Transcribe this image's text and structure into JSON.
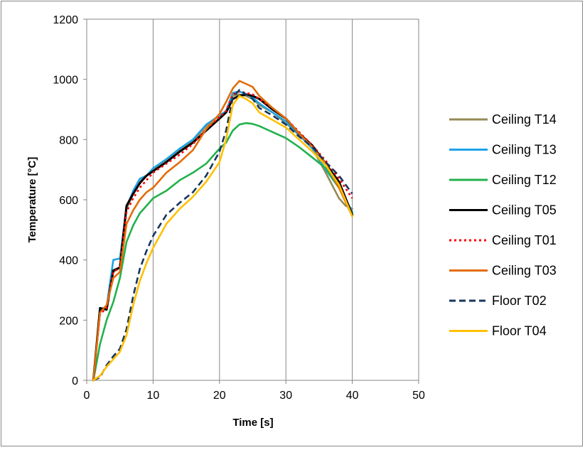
{
  "chart_data": {
    "type": "line",
    "title": "",
    "xlabel": "Time [s]",
    "ylabel": "Temperature [°C]",
    "xlim": [
      0,
      50
    ],
    "ylim": [
      0,
      1200
    ],
    "xticks": [
      "0",
      "10",
      "20",
      "30",
      "40",
      "50"
    ],
    "yticks": [
      "0",
      "200",
      "400",
      "600",
      "800",
      "1000",
      "1200"
    ],
    "grid": "vertical",
    "legend_position": "right",
    "series": [
      {
        "name": "Ceiling T14",
        "color": "#958a57",
        "dash": "solid",
        "points": [
          [
            1,
            0
          ],
          [
            2,
            235
          ],
          [
            3,
            240
          ],
          [
            4,
            360
          ],
          [
            5,
            375
          ],
          [
            6,
            570
          ],
          [
            7,
            620
          ],
          [
            8,
            660
          ],
          [
            9,
            680
          ],
          [
            10,
            700
          ],
          [
            12,
            730
          ],
          [
            14,
            765
          ],
          [
            16,
            795
          ],
          [
            18,
            845
          ],
          [
            20,
            880
          ],
          [
            21,
            890
          ],
          [
            22,
            945
          ],
          [
            23,
            950
          ],
          [
            24,
            945
          ],
          [
            25,
            935
          ],
          [
            26,
            915
          ],
          [
            28,
            890
          ],
          [
            30,
            855
          ],
          [
            32,
            815
          ],
          [
            34,
            770
          ],
          [
            36,
            690
          ],
          [
            38,
            605
          ],
          [
            39,
            580
          ],
          [
            40,
            570
          ]
        ]
      },
      {
        "name": "Ceiling T13",
        "color": "#1ea3e6",
        "dash": "solid",
        "points": [
          [
            1,
            0
          ],
          [
            2,
            235
          ],
          [
            3,
            245
          ],
          [
            4,
            400
          ],
          [
            5,
            405
          ],
          [
            6,
            575
          ],
          [
            7,
            630
          ],
          [
            8,
            670
          ],
          [
            9,
            680
          ],
          [
            10,
            705
          ],
          [
            12,
            735
          ],
          [
            14,
            770
          ],
          [
            16,
            800
          ],
          [
            18,
            850
          ],
          [
            20,
            880
          ],
          [
            21,
            895
          ],
          [
            22,
            955
          ],
          [
            23,
            960
          ],
          [
            24,
            950
          ],
          [
            25,
            940
          ],
          [
            26,
            920
          ],
          [
            28,
            890
          ],
          [
            30,
            860
          ],
          [
            32,
            815
          ],
          [
            34,
            770
          ],
          [
            36,
            700
          ],
          [
            38,
            640
          ],
          [
            40,
            560
          ]
        ]
      },
      {
        "name": "Ceiling T12",
        "color": "#22b14c",
        "dash": "solid",
        "points": [
          [
            1,
            0
          ],
          [
            2,
            120
          ],
          [
            3,
            200
          ],
          [
            4,
            260
          ],
          [
            5,
            340
          ],
          [
            6,
            460
          ],
          [
            7,
            515
          ],
          [
            8,
            555
          ],
          [
            9,
            580
          ],
          [
            10,
            605
          ],
          [
            12,
            630
          ],
          [
            14,
            665
          ],
          [
            16,
            690
          ],
          [
            18,
            720
          ],
          [
            20,
            770
          ],
          [
            21,
            790
          ],
          [
            22,
            830
          ],
          [
            23,
            850
          ],
          [
            24,
            855
          ],
          [
            25,
            852
          ],
          [
            26,
            845
          ],
          [
            28,
            825
          ],
          [
            30,
            805
          ],
          [
            32,
            775
          ],
          [
            34,
            740
          ],
          [
            36,
            705
          ],
          [
            38,
            640
          ],
          [
            40,
            555
          ]
        ]
      },
      {
        "name": "Ceiling T05",
        "color": "#000000",
        "dash": "solid",
        "points": [
          [
            1,
            0
          ],
          [
            2,
            240
          ],
          [
            3,
            235
          ],
          [
            4,
            365
          ],
          [
            5,
            375
          ],
          [
            6,
            580
          ],
          [
            7,
            620
          ],
          [
            8,
            655
          ],
          [
            9,
            680
          ],
          [
            10,
            695
          ],
          [
            12,
            725
          ],
          [
            14,
            760
          ],
          [
            16,
            790
          ],
          [
            18,
            830
          ],
          [
            20,
            870
          ],
          [
            21,
            890
          ],
          [
            22,
            935
          ],
          [
            23,
            945
          ],
          [
            24,
            950
          ],
          [
            25,
            945
          ],
          [
            26,
            935
          ],
          [
            28,
            900
          ],
          [
            30,
            870
          ],
          [
            32,
            820
          ],
          [
            34,
            780
          ],
          [
            36,
            720
          ],
          [
            38,
            660
          ],
          [
            40,
            550
          ]
        ]
      },
      {
        "name": "Ceiling T01",
        "color": "#ff0000",
        "dash": "3,4",
        "points": [
          [
            1,
            0
          ],
          [
            2,
            220
          ],
          [
            3,
            240
          ],
          [
            4,
            360
          ],
          [
            5,
            375
          ],
          [
            6,
            560
          ],
          [
            7,
            605
          ],
          [
            8,
            640
          ],
          [
            9,
            665
          ],
          [
            10,
            690
          ],
          [
            12,
            720
          ],
          [
            14,
            750
          ],
          [
            16,
            785
          ],
          [
            18,
            835
          ],
          [
            20,
            875
          ],
          [
            21,
            895
          ],
          [
            22,
            950
          ],
          [
            23,
            960
          ],
          [
            24,
            955
          ],
          [
            25,
            950
          ],
          [
            26,
            935
          ],
          [
            28,
            905
          ],
          [
            30,
            870
          ],
          [
            32,
            825
          ],
          [
            34,
            780
          ],
          [
            36,
            730
          ],
          [
            38,
            670
          ],
          [
            40,
            605
          ]
        ]
      },
      {
        "name": "Ceiling T03",
        "color": "#e36c09",
        "dash": "solid",
        "points": [
          [
            1,
            0
          ],
          [
            2,
            225
          ],
          [
            3,
            250
          ],
          [
            4,
            340
          ],
          [
            5,
            360
          ],
          [
            6,
            520
          ],
          [
            7,
            565
          ],
          [
            8,
            600
          ],
          [
            9,
            625
          ],
          [
            10,
            640
          ],
          [
            12,
            690
          ],
          [
            14,
            725
          ],
          [
            16,
            765
          ],
          [
            18,
            835
          ],
          [
            20,
            885
          ],
          [
            21,
            925
          ],
          [
            22,
            970
          ],
          [
            23,
            995
          ],
          [
            24,
            985
          ],
          [
            25,
            975
          ],
          [
            26,
            945
          ],
          [
            28,
            905
          ],
          [
            30,
            870
          ],
          [
            32,
            820
          ],
          [
            34,
            775
          ],
          [
            36,
            720
          ],
          [
            38,
            640
          ],
          [
            40,
            545
          ]
        ]
      },
      {
        "name": "Floor T02",
        "color": "#17365d",
        "dash": "9,5",
        "points": [
          [
            1,
            0
          ],
          [
            2,
            10
          ],
          [
            3,
            50
          ],
          [
            4,
            80
          ],
          [
            5,
            105
          ],
          [
            6,
            170
          ],
          [
            7,
            280
          ],
          [
            8,
            370
          ],
          [
            9,
            430
          ],
          [
            10,
            480
          ],
          [
            12,
            550
          ],
          [
            14,
            590
          ],
          [
            16,
            625
          ],
          [
            18,
            680
          ],
          [
            20,
            760
          ],
          [
            21,
            830
          ],
          [
            22,
            940
          ],
          [
            23,
            965
          ],
          [
            24,
            950
          ],
          [
            25,
            935
          ],
          [
            26,
            905
          ],
          [
            28,
            880
          ],
          [
            30,
            850
          ],
          [
            32,
            810
          ],
          [
            34,
            775
          ],
          [
            36,
            725
          ],
          [
            38,
            680
          ],
          [
            40,
            620
          ]
        ]
      },
      {
        "name": "Floor T04",
        "color": "#ffc000",
        "dash": "solid",
        "points": [
          [
            1,
            0
          ],
          [
            2,
            15
          ],
          [
            3,
            45
          ],
          [
            4,
            70
          ],
          [
            5,
            95
          ],
          [
            6,
            150
          ],
          [
            7,
            250
          ],
          [
            8,
            330
          ],
          [
            9,
            390
          ],
          [
            10,
            440
          ],
          [
            12,
            520
          ],
          [
            14,
            570
          ],
          [
            16,
            610
          ],
          [
            18,
            660
          ],
          [
            20,
            725
          ],
          [
            21,
            800
          ],
          [
            22,
            915
          ],
          [
            23,
            945
          ],
          [
            24,
            935
          ],
          [
            25,
            920
          ],
          [
            26,
            890
          ],
          [
            28,
            865
          ],
          [
            30,
            840
          ],
          [
            32,
            800
          ],
          [
            34,
            760
          ],
          [
            36,
            715
          ],
          [
            38,
            650
          ],
          [
            40,
            545
          ]
        ]
      }
    ]
  }
}
